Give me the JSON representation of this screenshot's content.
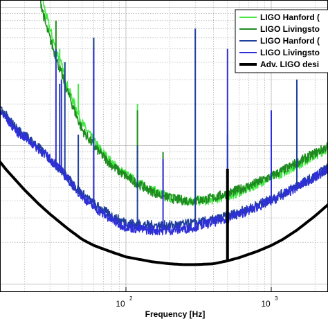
{
  "chart_data": {
    "type": "line",
    "x_scale": "log",
    "y_scale": "log",
    "xlabel": "Frequency [Hz]",
    "ylabel": "",
    "title": "",
    "xlim": [
      10,
      3000
    ],
    "grid": true,
    "legend_position": "top-right",
    "x_ticks": [
      {
        "value": 100,
        "base": "10",
        "exp": "2"
      },
      {
        "value": 1000,
        "base": "10",
        "exp": "3"
      }
    ],
    "series": [
      {
        "name": "LIGO Hanford (",
        "color": "#44e844",
        "points": [
          [
            10,
            8.0
          ],
          [
            20,
            8.0
          ],
          [
            22,
            3.0
          ],
          [
            25,
            1.6
          ],
          [
            28,
            0.9
          ],
          [
            32,
            0.55
          ],
          [
            36,
            0.38
          ],
          [
            40,
            0.26
          ],
          [
            45,
            0.19
          ],
          [
            50,
            0.145
          ],
          [
            60,
            0.108
          ],
          [
            70,
            0.088
          ],
          [
            80,
            0.075
          ],
          [
            90,
            0.067
          ],
          [
            100,
            0.062
          ],
          [
            120,
            0.054
          ],
          [
            150,
            0.048
          ],
          [
            180,
            0.044
          ],
          [
            220,
            0.041
          ],
          [
            260,
            0.04
          ],
          [
            300,
            0.04
          ],
          [
            350,
            0.04
          ],
          [
            400,
            0.041
          ],
          [
            500,
            0.043
          ],
          [
            600,
            0.046
          ],
          [
            700,
            0.049
          ],
          [
            800,
            0.053
          ],
          [
            1000,
            0.059
          ],
          [
            1200,
            0.064
          ],
          [
            1500,
            0.072
          ],
          [
            2000,
            0.085
          ],
          [
            2500,
            0.097
          ],
          [
            3000,
            0.108
          ]
        ],
        "peaks": [
          [
            35,
            0.5
          ],
          [
            38,
            0.4
          ],
          [
            47,
            0.28
          ],
          [
            60,
            0.55
          ],
          [
            120,
            0.2
          ],
          [
            300,
            0.07
          ],
          [
            500,
            0.15
          ]
        ]
      },
      {
        "name": "LIGO Livingsto",
        "color": "#1f8a1f",
        "points": [
          [
            10,
            8.0
          ],
          [
            18,
            8.0
          ],
          [
            20,
            4.0
          ],
          [
            22,
            2.5
          ],
          [
            25,
            1.3
          ],
          [
            28,
            0.75
          ],
          [
            32,
            0.48
          ],
          [
            36,
            0.33
          ],
          [
            40,
            0.24
          ],
          [
            45,
            0.17
          ],
          [
            50,
            0.13
          ],
          [
            60,
            0.1
          ],
          [
            70,
            0.083
          ],
          [
            80,
            0.072
          ],
          [
            90,
            0.065
          ],
          [
            100,
            0.06
          ],
          [
            120,
            0.053
          ],
          [
            150,
            0.047
          ],
          [
            180,
            0.043
          ],
          [
            220,
            0.041
          ],
          [
            260,
            0.04
          ],
          [
            300,
            0.04
          ],
          [
            350,
            0.041
          ],
          [
            400,
            0.042
          ],
          [
            500,
            0.045
          ],
          [
            600,
            0.048
          ],
          [
            700,
            0.051
          ],
          [
            800,
            0.054
          ],
          [
            1000,
            0.06
          ],
          [
            1200,
            0.066
          ],
          [
            1500,
            0.075
          ],
          [
            2000,
            0.088
          ],
          [
            2500,
            0.1
          ],
          [
            3000,
            0.112
          ]
        ],
        "peaks": [
          [
            33,
            0.8
          ],
          [
            60,
            0.6
          ],
          [
            120,
            0.18
          ],
          [
            180,
            0.09
          ],
          [
            500,
            0.12
          ]
        ]
      },
      {
        "name": "LIGO Hanford (",
        "color": "#1f3f9a",
        "points": [
          [
            10,
            0.45
          ],
          [
            11,
            0.3
          ],
          [
            12,
            0.24
          ],
          [
            14,
            0.18
          ],
          [
            16,
            0.15
          ],
          [
            18,
            0.13
          ],
          [
            20,
            0.12
          ],
          [
            25,
            0.097
          ],
          [
            30,
            0.08
          ],
          [
            35,
            0.068
          ],
          [
            40,
            0.058
          ],
          [
            45,
            0.05
          ],
          [
            50,
            0.045
          ],
          [
            60,
            0.038
          ],
          [
            70,
            0.034
          ],
          [
            80,
            0.031
          ],
          [
            90,
            0.029
          ],
          [
            100,
            0.028
          ],
          [
            120,
            0.027
          ],
          [
            150,
            0.0265
          ],
          [
            200,
            0.0265
          ],
          [
            250,
            0.027
          ],
          [
            300,
            0.0275
          ],
          [
            400,
            0.029
          ],
          [
            500,
            0.031
          ],
          [
            600,
            0.033
          ],
          [
            700,
            0.035
          ],
          [
            800,
            0.037
          ],
          [
            1000,
            0.041
          ],
          [
            1200,
            0.045
          ],
          [
            1500,
            0.051
          ],
          [
            2000,
            0.06
          ],
          [
            2500,
            0.07
          ],
          [
            3000,
            0.08
          ]
        ],
        "peaks": [
          [
            10.2,
            1.5
          ],
          [
            35,
            0.28
          ],
          [
            38,
            0.4
          ],
          [
            47,
            0.12
          ],
          [
            60,
            0.6
          ],
          [
            120,
            0.1
          ],
          [
            300,
            0.7
          ],
          [
            1500,
            0.3
          ]
        ]
      },
      {
        "name": "LIGO Livingsto",
        "color": "#2f2fd8",
        "points": [
          [
            10,
            0.3
          ],
          [
            11,
            0.25
          ],
          [
            12,
            0.21
          ],
          [
            14,
            0.17
          ],
          [
            16,
            0.145
          ],
          [
            18,
            0.125
          ],
          [
            20,
            0.115
          ],
          [
            25,
            0.095
          ],
          [
            30,
            0.08
          ],
          [
            35,
            0.068
          ],
          [
            40,
            0.057
          ],
          [
            45,
            0.049
          ],
          [
            50,
            0.043
          ],
          [
            60,
            0.036
          ],
          [
            70,
            0.032
          ],
          [
            80,
            0.029
          ],
          [
            90,
            0.027
          ],
          [
            100,
            0.026
          ],
          [
            120,
            0.025
          ],
          [
            150,
            0.0245
          ],
          [
            200,
            0.0245
          ],
          [
            250,
            0.025
          ],
          [
            300,
            0.026
          ],
          [
            400,
            0.028
          ],
          [
            500,
            0.03
          ],
          [
            600,
            0.032
          ],
          [
            700,
            0.034
          ],
          [
            800,
            0.036
          ],
          [
            1000,
            0.04
          ],
          [
            1200,
            0.044
          ],
          [
            1500,
            0.05
          ],
          [
            2000,
            0.059
          ],
          [
            2500,
            0.069
          ],
          [
            3000,
            0.079
          ]
        ],
        "peaks": [
          [
            33,
            0.5
          ],
          [
            36,
            0.3
          ],
          [
            60,
            0.5
          ],
          [
            180,
            0.08
          ],
          [
            500,
            0.5
          ],
          [
            1000,
            0.18
          ]
        ]
      },
      {
        "name": "Adv. LIGO desi",
        "color": "#000000",
        "points": [
          [
            10,
            0.13
          ],
          [
            12,
            0.09
          ],
          [
            15,
            0.067
          ],
          [
            20,
            0.048
          ],
          [
            25,
            0.038
          ],
          [
            30,
            0.032
          ],
          [
            40,
            0.025
          ],
          [
            50,
            0.021
          ],
          [
            60,
            0.019
          ],
          [
            80,
            0.017
          ],
          [
            100,
            0.0157
          ],
          [
            150,
            0.0145
          ],
          [
            200,
            0.014
          ],
          [
            250,
            0.0138
          ],
          [
            300,
            0.0138
          ],
          [
            400,
            0.014
          ],
          [
            500,
            0.0147
          ],
          [
            600,
            0.0155
          ],
          [
            800,
            0.0172
          ],
          [
            1000,
            0.019
          ],
          [
            1200,
            0.021
          ],
          [
            1500,
            0.0245
          ],
          [
            2000,
            0.031
          ],
          [
            2500,
            0.038
          ],
          [
            3000,
            0.045
          ]
        ],
        "peaks": [
          [
            500,
            0.068
          ]
        ]
      }
    ]
  }
}
